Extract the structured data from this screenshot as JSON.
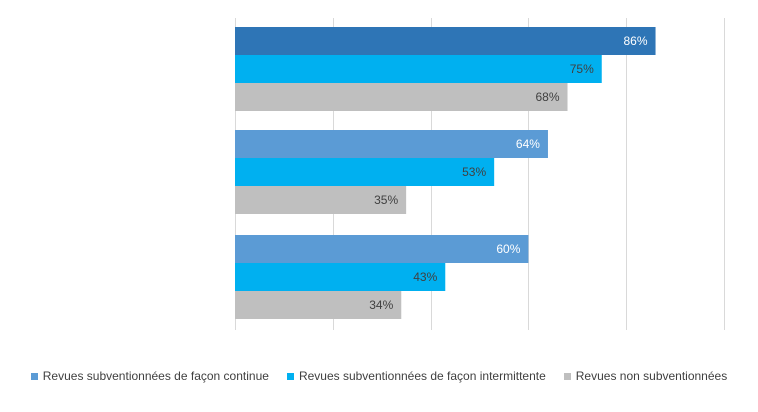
{
  "chart_data": {
    "type": "bar",
    "orientation": "horizontal",
    "categories": [
      "",
      "",
      ""
    ],
    "series": [
      {
        "name": "Revues subventionnées de façon continue",
        "values": [
          86,
          64,
          60
        ],
        "color": "#5b9bd5",
        "first_bar_color": "#2e75b6",
        "label_color": "#ffffff"
      },
      {
        "name": "Revues subventionnées de façon intermittente",
        "values": [
          75,
          53,
          43
        ],
        "color": "#00b0f0",
        "label_color": "#404040"
      },
      {
        "name": "Revues non subventionnées",
        "values": [
          68,
          35,
          34
        ],
        "color": "#bfbfbf",
        "label_color": "#404040"
      }
    ],
    "value_suffix": "%",
    "xlim": [
      0,
      100
    ],
    "x_gridlines": [
      0,
      20,
      40,
      60,
      80,
      100
    ],
    "grid": true,
    "legend_position": "bottom",
    "title": "",
    "xlabel": "",
    "ylabel": ""
  }
}
